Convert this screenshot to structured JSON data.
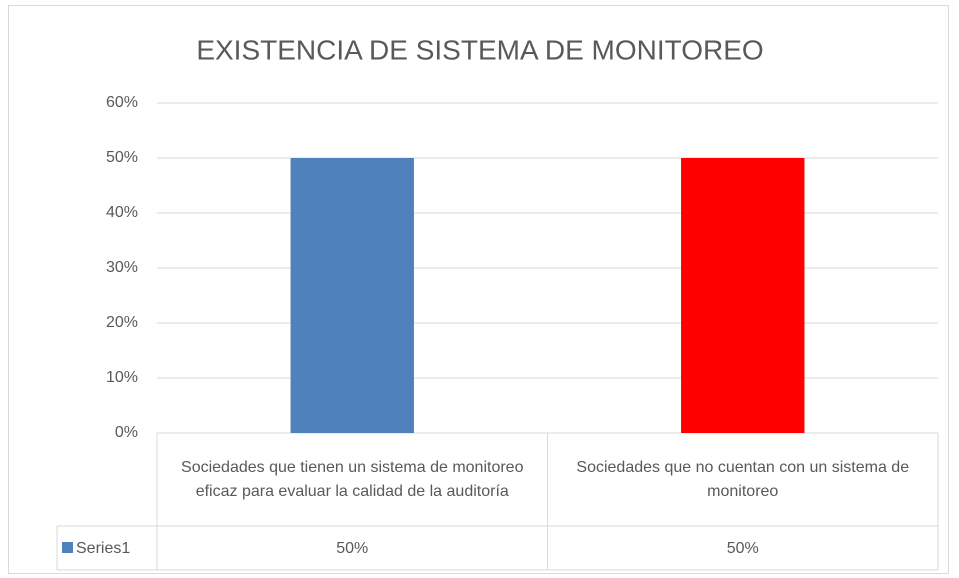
{
  "chart_data": {
    "type": "bar",
    "title": "EXISTENCIA DE SISTEMA DE MONITOREO",
    "categories": [
      "Sociedades que tienen un sistema de monitoreo eficaz para evaluar la calidad de la auditoría",
      "Sociedades que no cuentan con un sistema de monitoreo"
    ],
    "series": [
      {
        "name": "Series1",
        "color": "#4f81bd",
        "colors": [
          "#4f81bd",
          "#ff0000"
        ],
        "values": [
          50,
          50
        ],
        "value_labels": [
          "50%",
          "50%"
        ]
      }
    ],
    "ylim": [
      0,
      60
    ],
    "yticks": [
      {
        "value": 0,
        "label": "0%"
      },
      {
        "value": 10,
        "label": "10%"
      },
      {
        "value": 20,
        "label": "20%"
      },
      {
        "value": 30,
        "label": "30%"
      },
      {
        "value": 40,
        "label": "40%"
      },
      {
        "value": 50,
        "label": "50%"
      },
      {
        "value": 60,
        "label": "60%"
      }
    ],
    "grid": true
  }
}
